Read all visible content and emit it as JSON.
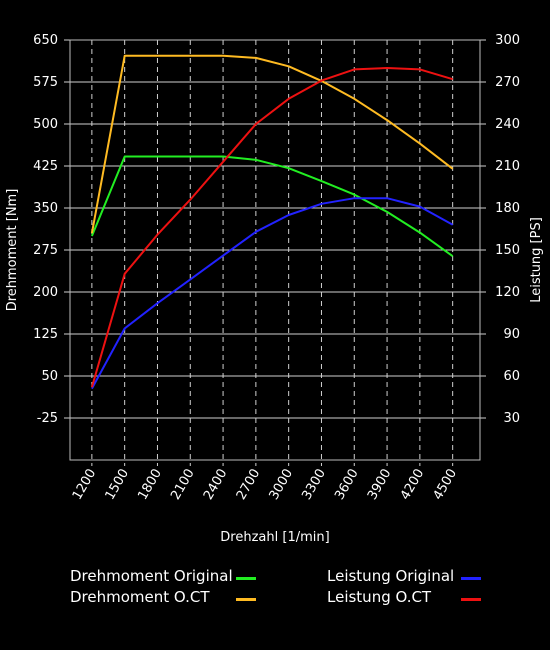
{
  "chart_data": {
    "type": "line",
    "xlabel": "Drehzahl [1/min]",
    "ylabel_left": "Drehmoment [Nm]",
    "ylabel_right": "Leistung [PS]",
    "x": [
      1200,
      1500,
      1800,
      2100,
      2400,
      2700,
      3000,
      3300,
      3600,
      3900,
      4200,
      4500
    ],
    "x_tick_labels": [
      "1200",
      "1500",
      "1800",
      "2100",
      "2400",
      "2700",
      "3000",
      "3300",
      "3600",
      "3900",
      "4200",
      "4500"
    ],
    "xlim": [
      1000,
      4750
    ],
    "ylim_left": [
      -100,
      650
    ],
    "ylim_right": [
      0,
      300
    ],
    "y_left_ticks": [
      -25,
      50,
      125,
      200,
      275,
      350,
      425,
      500,
      575,
      650
    ],
    "y_left_tick_labels": [
      "-25",
      "50",
      "125",
      "200",
      "275",
      "350",
      "425",
      "500",
      "575",
      "650"
    ],
    "y_right_ticks": [
      30,
      60,
      90,
      120,
      150,
      180,
      210,
      240,
      270,
      300
    ],
    "y_right_tick_labels": [
      "30",
      "60",
      "90",
      "120",
      "150",
      "180",
      "210",
      "240",
      "270",
      "300"
    ],
    "grid": true,
    "series": [
      {
        "name": "Drehmoment Original",
        "axis": "left",
        "color": "#22ee22",
        "x": [
          1200,
          1500,
          2400,
          2700,
          3000,
          3300,
          3600,
          3900,
          4200,
          4500
        ],
        "values": [
          300,
          442,
          442,
          436,
          421,
          398,
          374,
          343,
          306,
          264
        ]
      },
      {
        "name": "Drehmoment O.CT",
        "axis": "left",
        "color": "#ffbb22",
        "x": [
          1200,
          1500,
          2400,
          2700,
          3000,
          3300,
          3600,
          3900,
          4200,
          4500
        ],
        "values": [
          305,
          622,
          622,
          618,
          603,
          577,
          545,
          507,
          465,
          420
        ]
      },
      {
        "name": "Leistung Original",
        "axis": "right",
        "color": "#2222ff",
        "x": [
          1200,
          1500,
          1800,
          2100,
          2400,
          2700,
          3000,
          3300,
          3600,
          3900,
          4200,
          4500
        ],
        "values": [
          51,
          94,
          112,
          129,
          146,
          163,
          175,
          183,
          187,
          187,
          181,
          168
        ]
      },
      {
        "name": "Leistung O.CT",
        "axis": "right",
        "color": "#ee1111",
        "x": [
          1200,
          1500,
          1800,
          2100,
          2400,
          2700,
          3000,
          3300,
          3600,
          3900,
          4200,
          4500
        ],
        "values": [
          52,
          133,
          161,
          186,
          213,
          240,
          258,
          271,
          279,
          280,
          279,
          272
        ]
      }
    ],
    "legend_placement": "bottom"
  }
}
